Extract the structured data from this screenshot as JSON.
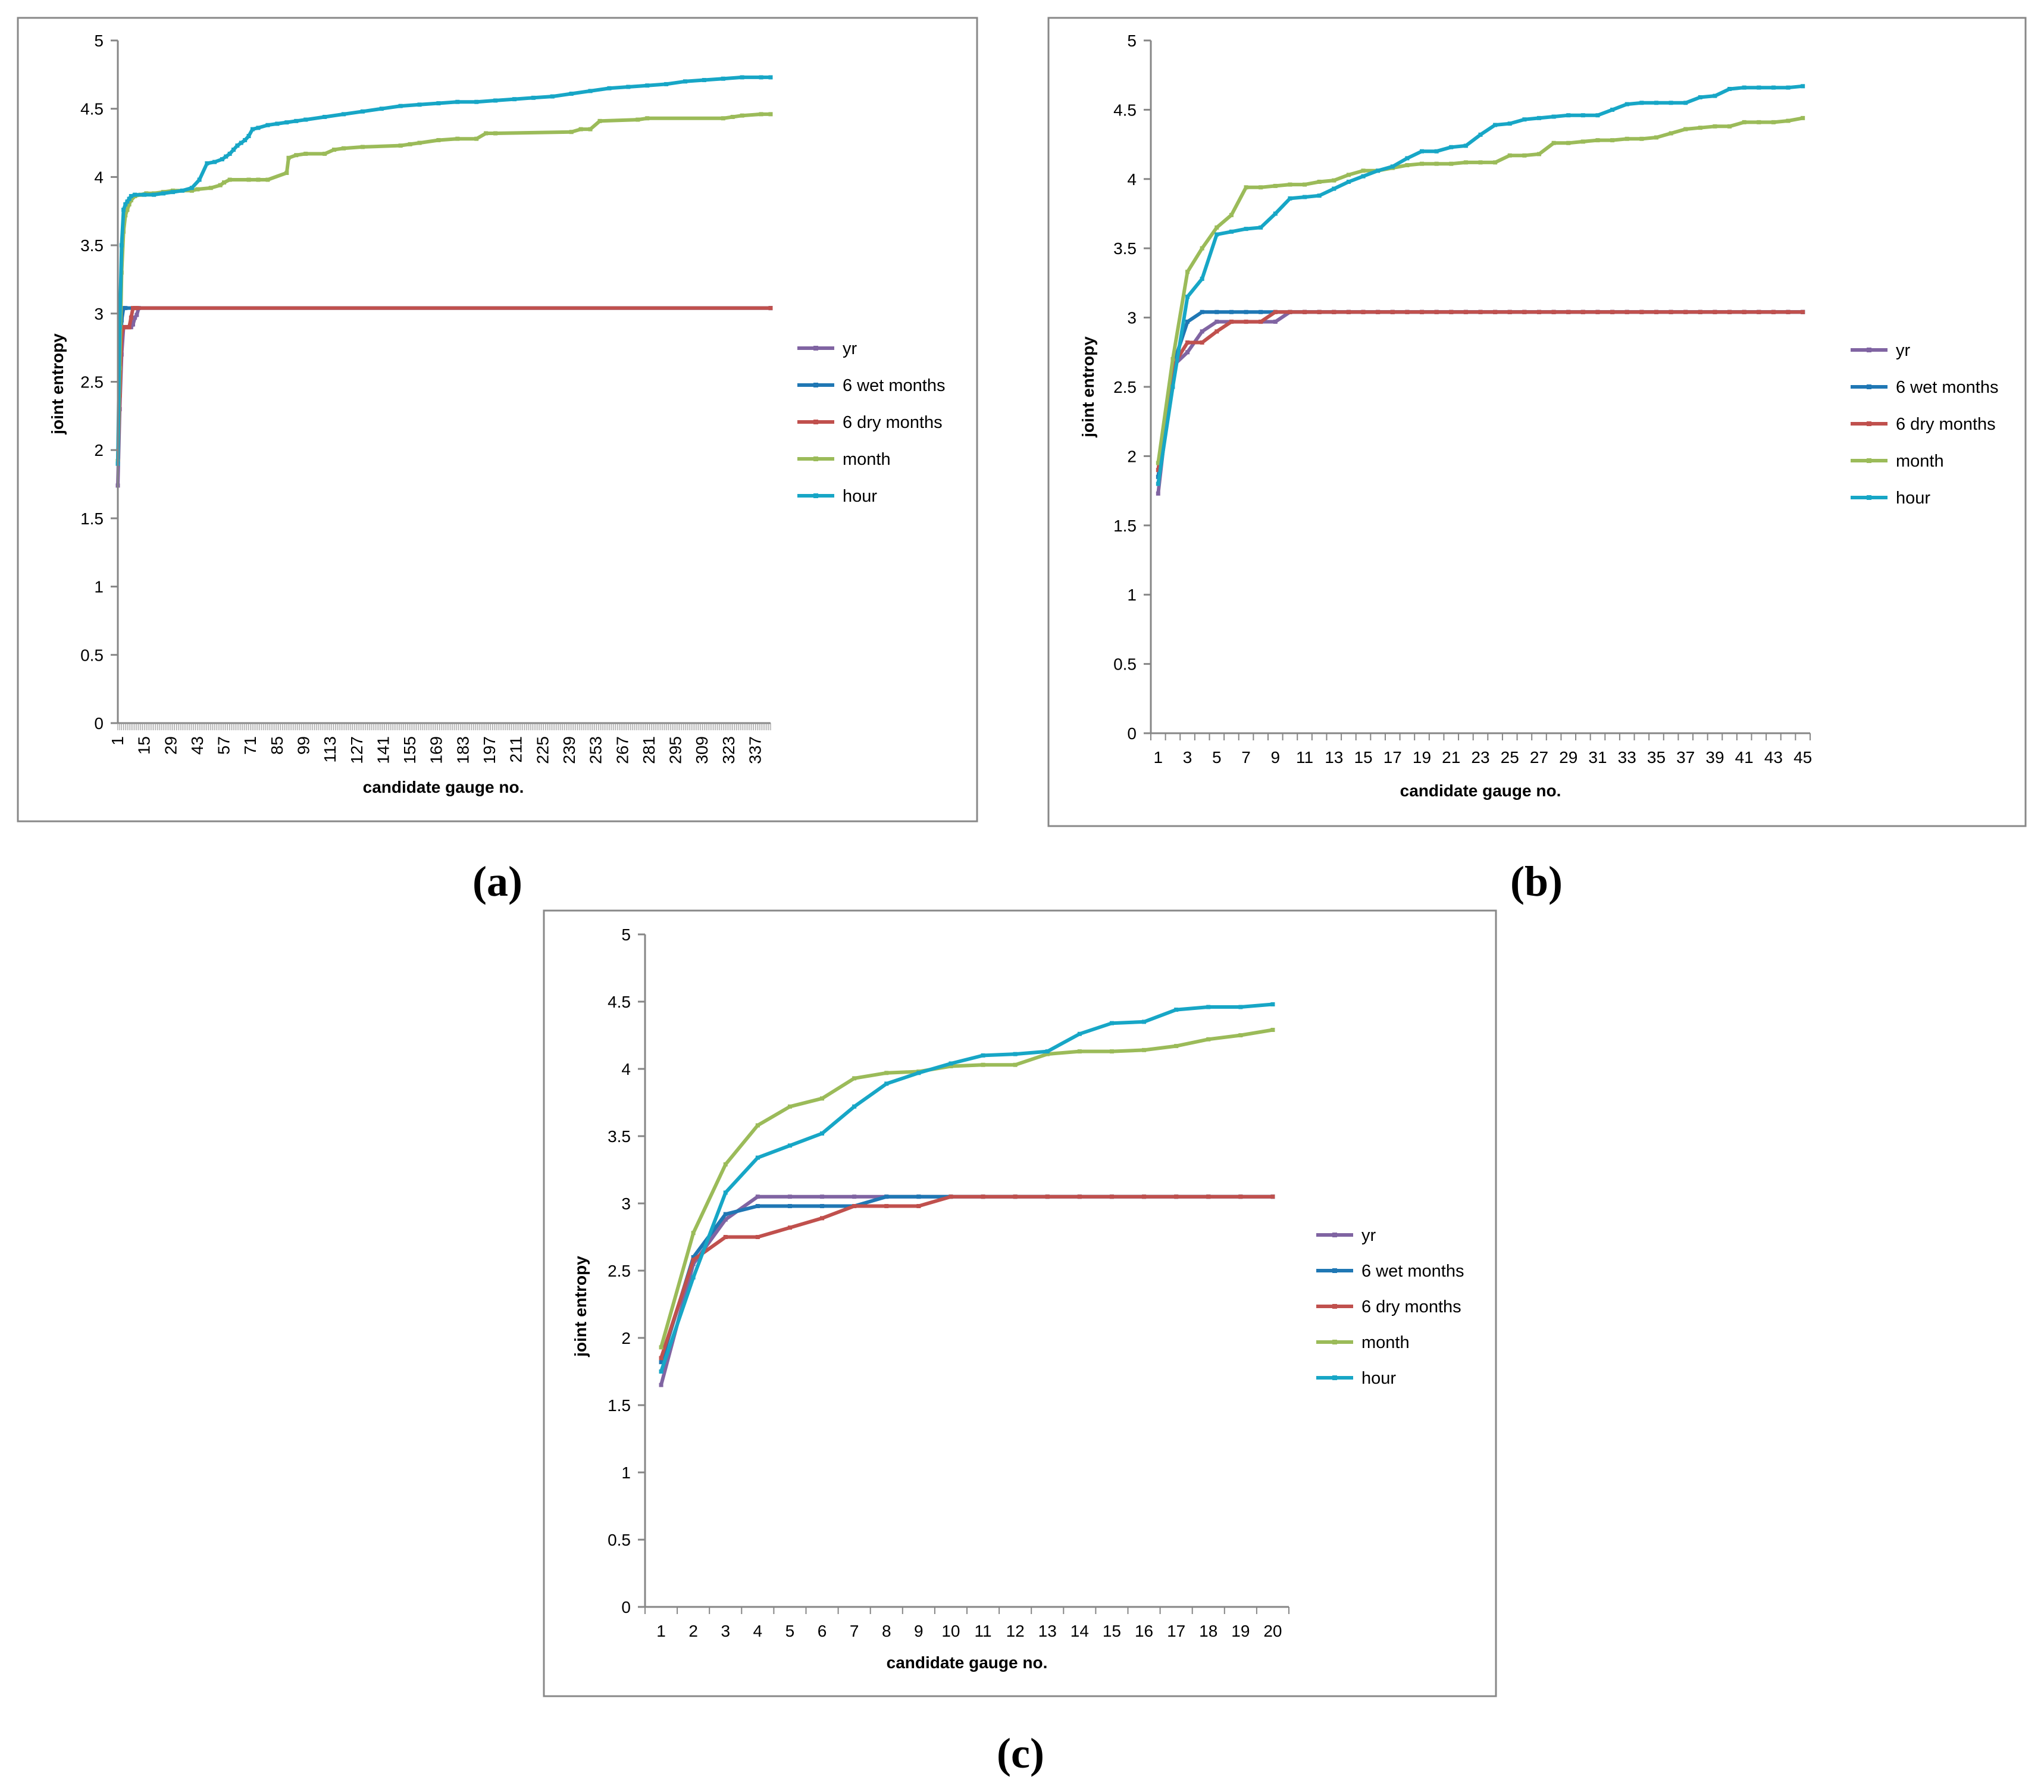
{
  "figure": {
    "panel_labels": [
      "(a)",
      "(b)",
      "(c)"
    ]
  },
  "legend_labels": [
    "yr",
    "6 wet months",
    "6 dry months",
    "month",
    "hour"
  ],
  "chart_data": [
    {
      "type": "line",
      "panel": "(a)",
      "xlabel": "candidate gauge no.",
      "ylabel": "joint entropy",
      "ylim": [
        0,
        5
      ],
      "yticks": [
        "0",
        "0.5",
        "1",
        "1.5",
        "2",
        "2.5",
        "3",
        "3.5",
        "4",
        "4.5",
        "5"
      ],
      "xlim": [
        1,
        345
      ],
      "xtick_labels": [
        "1",
        "15",
        "29",
        "43",
        "57",
        "71",
        "85",
        "99",
        "113",
        "127",
        "141",
        "155",
        "169",
        "183",
        "197",
        "211",
        "225",
        "239",
        "253",
        "267",
        "281",
        "295",
        "309",
        "323",
        "337"
      ],
      "legend_position": "right",
      "series": [
        {
          "name": "yr",
          "color": "#8064A2",
          "x": [
            1,
            2,
            3,
            4,
            5,
            6,
            7,
            8,
            9,
            10,
            11,
            12,
            345
          ],
          "y": [
            1.74,
            2.3,
            2.7,
            2.9,
            2.9,
            2.9,
            2.9,
            2.9,
            2.92,
            2.97,
            2.99,
            3.04,
            3.04
          ]
        },
        {
          "name": "6 wet months",
          "color": "#1F77B4",
          "x": [
            1,
            2,
            3,
            4,
            5,
            345
          ],
          "y": [
            1.9,
            2.5,
            2.95,
            3.04,
            3.04,
            3.04
          ]
        },
        {
          "name": "6 dry months",
          "color": "#C0504D",
          "x": [
            1,
            2,
            3,
            4,
            5,
            6,
            7,
            8,
            9,
            10,
            11,
            345
          ],
          "y": [
            1.92,
            2.4,
            2.85,
            2.9,
            2.9,
            2.9,
            2.9,
            2.97,
            3.04,
            3.04,
            3.04,
            3.04
          ]
        },
        {
          "name": "month",
          "color": "#9BBB59",
          "x": [
            1,
            2,
            3,
            4,
            5,
            6,
            7,
            8,
            10,
            13,
            16,
            20,
            25,
            30,
            40,
            43,
            50,
            55,
            57,
            60,
            70,
            75,
            80,
            90,
            91,
            95,
            100,
            110,
            115,
            120,
            130,
            150,
            155,
            160,
            170,
            180,
            190,
            195,
            200,
            240,
            245,
            250,
            255,
            275,
            280,
            320,
            325,
            330,
            340,
            345
          ],
          "y": [
            1.92,
            2.6,
            3.3,
            3.6,
            3.72,
            3.76,
            3.8,
            3.83,
            3.86,
            3.87,
            3.88,
            3.88,
            3.89,
            3.9,
            3.9,
            3.91,
            3.92,
            3.94,
            3.96,
            3.98,
            3.98,
            3.98,
            3.98,
            4.03,
            4.14,
            4.16,
            4.17,
            4.17,
            4.2,
            4.21,
            4.22,
            4.23,
            4.24,
            4.25,
            4.27,
            4.28,
            4.28,
            4.32,
            4.32,
            4.33,
            4.35,
            4.35,
            4.41,
            4.42,
            4.43,
            4.43,
            4.44,
            4.45,
            4.46,
            4.46
          ]
        },
        {
          "name": "hour",
          "color": "#17A6C6",
          "x": [
            1,
            2,
            3,
            4,
            5,
            6,
            7,
            8,
            10,
            15,
            20,
            25,
            30,
            35,
            40,
            44,
            48,
            52,
            56,
            58,
            60,
            62,
            64,
            66,
            68,
            70,
            72,
            75,
            80,
            85,
            90,
            95,
            100,
            110,
            120,
            130,
            140,
            150,
            160,
            170,
            180,
            190,
            200,
            210,
            220,
            230,
            240,
            250,
            260,
            270,
            280,
            290,
            300,
            310,
            320,
            330,
            340,
            345
          ],
          "y": [
            1.9,
            2.9,
            3.5,
            3.76,
            3.8,
            3.82,
            3.84,
            3.86,
            3.87,
            3.87,
            3.87,
            3.88,
            3.89,
            3.9,
            3.92,
            3.98,
            4.1,
            4.11,
            4.13,
            4.15,
            4.17,
            4.2,
            4.23,
            4.25,
            4.27,
            4.3,
            4.35,
            4.36,
            4.38,
            4.39,
            4.4,
            4.41,
            4.42,
            4.44,
            4.46,
            4.48,
            4.5,
            4.52,
            4.53,
            4.54,
            4.55,
            4.55,
            4.56,
            4.57,
            4.58,
            4.59,
            4.61,
            4.63,
            4.65,
            4.66,
            4.67,
            4.68,
            4.7,
            4.71,
            4.72,
            4.73,
            4.73,
            4.73
          ]
        }
      ]
    },
    {
      "type": "line",
      "panel": "(b)",
      "xlabel": "candidate gauge no.",
      "ylabel": "joint entropy",
      "ylim": [
        0,
        5
      ],
      "yticks": [
        "0",
        "0.5",
        "1",
        "1.5",
        "2",
        "2.5",
        "3",
        "3.5",
        "4",
        "4.5",
        "5"
      ],
      "x": [
        1,
        2,
        3,
        4,
        5,
        6,
        7,
        8,
        9,
        10,
        11,
        12,
        13,
        14,
        15,
        16,
        17,
        18,
        19,
        20,
        21,
        22,
        23,
        24,
        25,
        26,
        27,
        28,
        29,
        30,
        31,
        32,
        33,
        34,
        35,
        36,
        37,
        38,
        39,
        40,
        41,
        42,
        43,
        44,
        45
      ],
      "xtick_labels": [
        "1",
        "3",
        "5",
        "7",
        "9",
        "11",
        "13",
        "15",
        "17",
        "19",
        "21",
        "23",
        "25",
        "27",
        "29",
        "31",
        "33",
        "35",
        "37",
        "39",
        "41",
        "43",
        "45"
      ],
      "legend_position": "right",
      "series": [
        {
          "name": "yr",
          "color": "#8064A2",
          "values": [
            1.73,
            2.65,
            2.75,
            2.9,
            2.97,
            2.97,
            2.97,
            2.97,
            2.97,
            3.04,
            3.04,
            3.04,
            3.04,
            3.04,
            3.04,
            3.04,
            3.04,
            3.04,
            3.04,
            3.04,
            3.04,
            3.04,
            3.04,
            3.04,
            3.04,
            3.04,
            3.04,
            3.04,
            3.04,
            3.04,
            3.04,
            3.04,
            3.04,
            3.04,
            3.04,
            3.04,
            3.04,
            3.04,
            3.04,
            3.04,
            3.04,
            3.04,
            3.04,
            3.04,
            3.04
          ]
        },
        {
          "name": "6 wet months",
          "color": "#1F77B4",
          "values": [
            1.85,
            2.65,
            2.97,
            3.04,
            3.04,
            3.04,
            3.04,
            3.04,
            3.04,
            3.04,
            3.04,
            3.04,
            3.04,
            3.04,
            3.04,
            3.04,
            3.04,
            3.04,
            3.04,
            3.04,
            3.04,
            3.04,
            3.04,
            3.04,
            3.04,
            3.04,
            3.04,
            3.04,
            3.04,
            3.04,
            3.04,
            3.04,
            3.04,
            3.04,
            3.04,
            3.04,
            3.04,
            3.04,
            3.04,
            3.04,
            3.04,
            3.04,
            3.04,
            3.04,
            3.04
          ]
        },
        {
          "name": "6 dry months",
          "color": "#C0504D",
          "values": [
            1.9,
            2.65,
            2.82,
            2.82,
            2.9,
            2.97,
            2.97,
            2.97,
            3.04,
            3.04,
            3.04,
            3.04,
            3.04,
            3.04,
            3.04,
            3.04,
            3.04,
            3.04,
            3.04,
            3.04,
            3.04,
            3.04,
            3.04,
            3.04,
            3.04,
            3.04,
            3.04,
            3.04,
            3.04,
            3.04,
            3.04,
            3.04,
            3.04,
            3.04,
            3.04,
            3.04,
            3.04,
            3.04,
            3.04,
            3.04,
            3.04,
            3.04,
            3.04,
            3.04,
            3.04
          ]
        },
        {
          "name": "month",
          "color": "#9BBB59",
          "values": [
            1.95,
            2.7,
            3.33,
            3.5,
            3.65,
            3.74,
            3.94,
            3.94,
            3.95,
            3.96,
            3.96,
            3.98,
            3.99,
            4.03,
            4.06,
            4.06,
            4.08,
            4.1,
            4.11,
            4.11,
            4.11,
            4.12,
            4.12,
            4.12,
            4.17,
            4.17,
            4.18,
            4.26,
            4.26,
            4.27,
            4.28,
            4.28,
            4.29,
            4.29,
            4.3,
            4.33,
            4.36,
            4.37,
            4.38,
            4.38,
            4.41,
            4.41,
            4.41,
            4.42,
            4.44
          ]
        },
        {
          "name": "hour",
          "color": "#17A6C6",
          "values": [
            1.8,
            2.5,
            3.15,
            3.28,
            3.6,
            3.62,
            3.64,
            3.65,
            3.75,
            3.86,
            3.87,
            3.88,
            3.93,
            3.98,
            4.02,
            4.06,
            4.09,
            4.15,
            4.2,
            4.2,
            4.23,
            4.24,
            4.32,
            4.39,
            4.4,
            4.43,
            4.44,
            4.45,
            4.46,
            4.46,
            4.46,
            4.5,
            4.54,
            4.55,
            4.55,
            4.55,
            4.55,
            4.59,
            4.6,
            4.65,
            4.66,
            4.66,
            4.66,
            4.66,
            4.67
          ]
        }
      ]
    },
    {
      "type": "line",
      "panel": "(c)",
      "xlabel": "candidate gauge no.",
      "ylabel": "joint entropy",
      "ylim": [
        0,
        5
      ],
      "yticks": [
        "0",
        "0.5",
        "1",
        "1.5",
        "2",
        "2.5",
        "3",
        "3.5",
        "4",
        "4.5",
        "5"
      ],
      "x": [
        1,
        2,
        3,
        4,
        5,
        6,
        7,
        8,
        9,
        10,
        11,
        12,
        13,
        14,
        15,
        16,
        17,
        18,
        19,
        20
      ],
      "xtick_labels": [
        "1",
        "2",
        "3",
        "4",
        "5",
        "6",
        "7",
        "8",
        "9",
        "10",
        "11",
        "12",
        "13",
        "14",
        "15",
        "16",
        "17",
        "18",
        "19",
        "20"
      ],
      "legend_position": "right",
      "series": [
        {
          "name": "yr",
          "color": "#8064A2",
          "values": [
            1.65,
            2.55,
            2.88,
            3.05,
            3.05,
            3.05,
            3.05,
            3.05,
            3.05,
            3.05,
            3.05,
            3.05,
            3.05,
            3.05,
            3.05,
            3.05,
            3.05,
            3.05,
            3.05,
            3.05
          ]
        },
        {
          "name": "6 wet months",
          "color": "#1F77B4",
          "values": [
            1.82,
            2.6,
            2.92,
            2.98,
            2.98,
            2.98,
            2.98,
            3.05,
            3.05,
            3.05,
            3.05,
            3.05,
            3.05,
            3.05,
            3.05,
            3.05,
            3.05,
            3.05,
            3.05,
            3.05
          ]
        },
        {
          "name": "6 dry months",
          "color": "#C0504D",
          "values": [
            1.85,
            2.58,
            2.75,
            2.75,
            2.82,
            2.89,
            2.98,
            2.98,
            2.98,
            3.05,
            3.05,
            3.05,
            3.05,
            3.05,
            3.05,
            3.05,
            3.05,
            3.05,
            3.05,
            3.05
          ]
        },
        {
          "name": "month",
          "color": "#9BBB59",
          "values": [
            1.93,
            2.78,
            3.29,
            3.58,
            3.72,
            3.78,
            3.93,
            3.97,
            3.98,
            4.02,
            4.03,
            4.03,
            4.11,
            4.13,
            4.13,
            4.14,
            4.17,
            4.22,
            4.25,
            4.29
          ]
        },
        {
          "name": "hour",
          "color": "#17A6C6",
          "values": [
            1.75,
            2.45,
            3.08,
            3.34,
            3.43,
            3.52,
            3.72,
            3.89,
            3.97,
            4.04,
            4.1,
            4.11,
            4.13,
            4.26,
            4.34,
            4.35,
            4.44,
            4.46,
            4.46,
            4.48
          ]
        }
      ]
    }
  ]
}
